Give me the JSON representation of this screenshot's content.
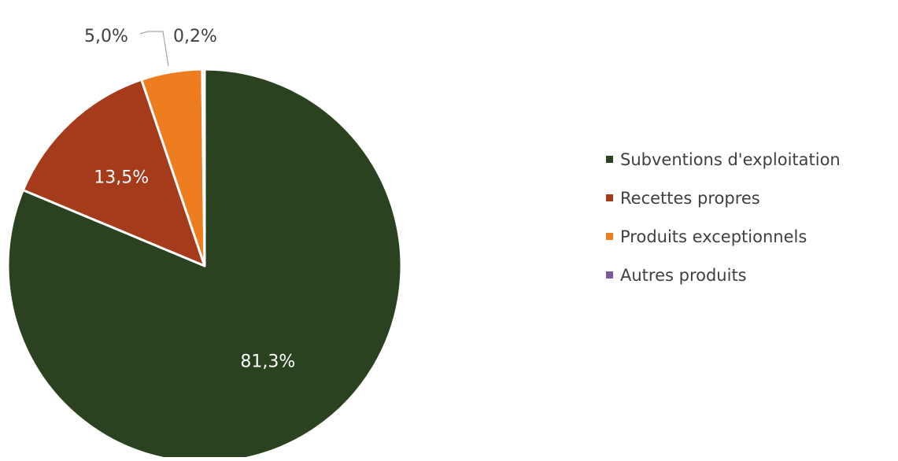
{
  "chart_data": {
    "type": "pie",
    "title": "",
    "slices": [
      {
        "label": "Subventions d'exploitation",
        "value": 81.3,
        "value_label": "81,3%",
        "color": "#2b4220"
      },
      {
        "label": "Recettes propres",
        "value": 13.5,
        "value_label": "13,5%",
        "color": "#a63b1c"
      },
      {
        "label": "Produits exceptionnels",
        "value": 5.0,
        "value_label": "5,0%",
        "color": "#ed7d1e"
      },
      {
        "label": "Autres produits",
        "value": 0.2,
        "value_label": "0,2%",
        "color": "#7c579e"
      }
    ],
    "start_angle": "12 o'clock",
    "direction": "clockwise",
    "legend_position": "right"
  }
}
